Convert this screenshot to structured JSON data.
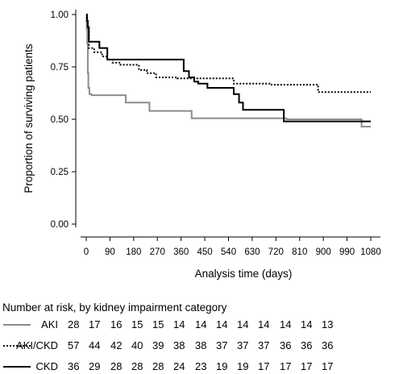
{
  "chart_data": {
    "type": "line",
    "step": true,
    "xlabel": "Analysis time (days)",
    "ylabel": "Proportion of surviving patients",
    "xlim": [
      0,
      1080
    ],
    "ylim": [
      0,
      1
    ],
    "x_ticks": [
      "0",
      "90",
      "180",
      "270",
      "360",
      "450",
      "540",
      "630",
      "720",
      "810",
      "900",
      "990",
      "1080"
    ],
    "x_tick_values": [
      0,
      90,
      180,
      270,
      360,
      450,
      540,
      630,
      720,
      810,
      900,
      990,
      1080
    ],
    "y_ticks": [
      "0.00",
      "0.25",
      "0.50",
      "0.75",
      "1.00"
    ],
    "y_tick_values": [
      0,
      0.25,
      0.5,
      0.75,
      1.0
    ],
    "grid": false,
    "series": [
      {
        "name": "AKI",
        "color": "#8c8c8c",
        "dash": "solid",
        "x": [
          0,
          2,
          4,
          6,
          8,
          12,
          20,
          150,
          240,
          400,
          760,
          1045,
          1080
        ],
        "y": [
          1.0,
          0.93,
          0.86,
          0.72,
          0.65,
          0.62,
          0.615,
          0.58,
          0.54,
          0.505,
          0.5,
          0.465,
          0.465
        ]
      },
      {
        "name": "AKI/CKD",
        "color": "#000000",
        "dash": "dotted",
        "x": [
          0,
          2,
          5,
          10,
          30,
          60,
          80,
          100,
          130,
          200,
          230,
          265,
          345,
          560,
          700,
          880,
          1080
        ],
        "y": [
          1.0,
          0.96,
          0.93,
          0.84,
          0.82,
          0.8,
          0.785,
          0.77,
          0.76,
          0.735,
          0.72,
          0.7,
          0.695,
          0.67,
          0.665,
          0.63,
          0.63
        ]
      },
      {
        "name": "CKD",
        "color": "#000000",
        "dash": "solid",
        "x": [
          0,
          3,
          6,
          10,
          50,
          80,
          370,
          390,
          410,
          425,
          460,
          560,
          580,
          595,
          750,
          1080
        ],
        "y": [
          1.0,
          0.97,
          0.94,
          0.87,
          0.84,
          0.785,
          0.73,
          0.7,
          0.68,
          0.67,
          0.65,
          0.62,
          0.58,
          0.545,
          0.49,
          0.49
        ]
      }
    ],
    "risk_table": {
      "title": "Number at risk, by kidney impairment category",
      "rows": [
        {
          "label": "AKI",
          "values": [
            "28",
            "17",
            "16",
            "15",
            "15",
            "14",
            "14",
            "14",
            "14",
            "14",
            "14",
            "14",
            "13"
          ]
        },
        {
          "label": "AKI/CKD",
          "values": [
            "57",
            "44",
            "42",
            "40",
            "39",
            "38",
            "38",
            "37",
            "37",
            "37",
            "36",
            "36",
            "36"
          ]
        },
        {
          "label": "CKD",
          "values": [
            "36",
            "29",
            "28",
            "28",
            "28",
            "24",
            "23",
            "19",
            "19",
            "17",
            "17",
            "17",
            "17"
          ]
        }
      ]
    }
  }
}
